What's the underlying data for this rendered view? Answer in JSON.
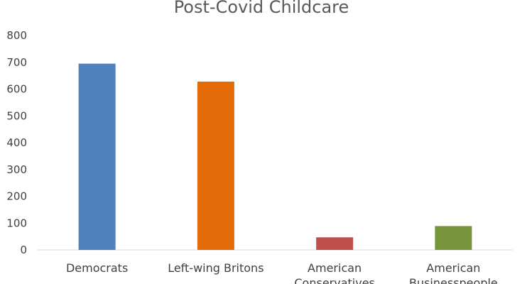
{
  "chart_data": {
    "type": "bar",
    "title": "Post-Covid Childcare",
    "xlabel": "",
    "ylabel": "",
    "ylim": [
      0,
      800
    ],
    "yticks": [
      0,
      100,
      200,
      300,
      400,
      500,
      600,
      700,
      800
    ],
    "grid": false,
    "legend": "none",
    "categories": [
      [
        "Democrats"
      ],
      [
        "Left-wing Britons"
      ],
      [
        "American",
        "Conservatives"
      ],
      [
        "American",
        "Businesspeople"
      ]
    ],
    "values": [
      695,
      628,
      47,
      89
    ],
    "colors": [
      "#4f81bd",
      "#e36c09",
      "#c0504d",
      "#77933c"
    ],
    "axis_color": "#d9d9d9"
  }
}
